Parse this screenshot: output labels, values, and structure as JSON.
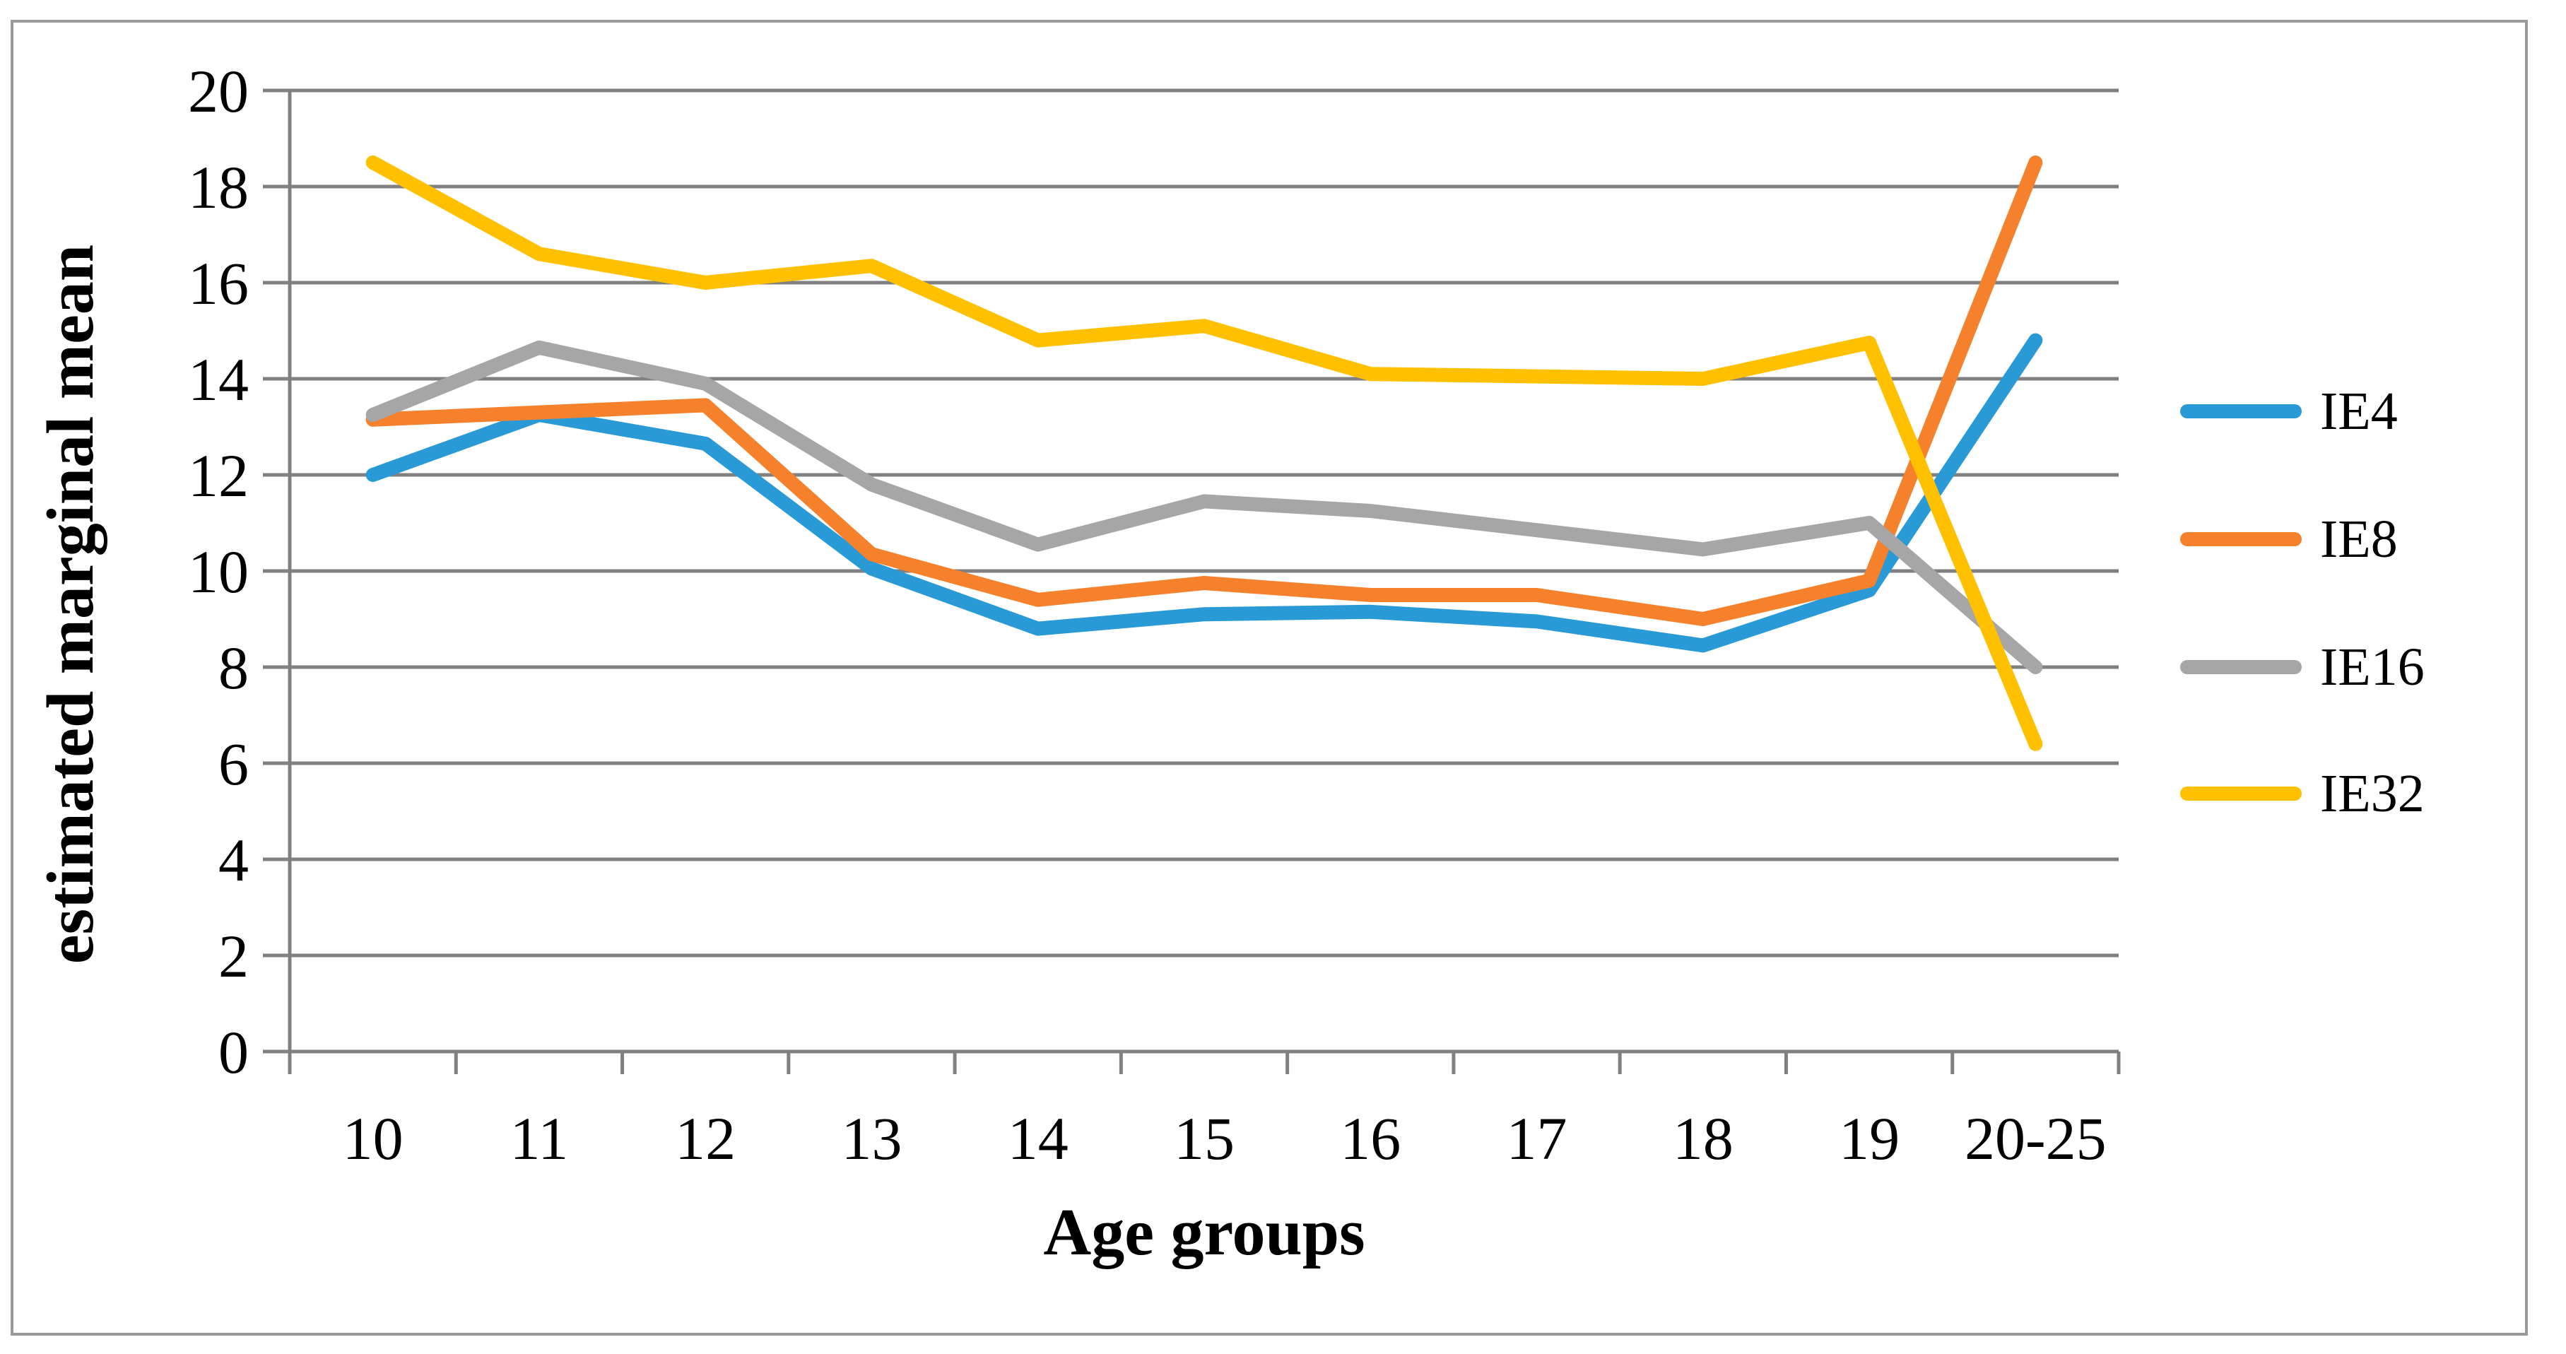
{
  "chart_data": {
    "type": "line",
    "title": "",
    "xlabel": "Age groups",
    "ylabel": "estimated marginal mean",
    "categories": [
      "10",
      "11",
      "12",
      "13",
      "14",
      "15",
      "16",
      "17",
      "18",
      "19",
      "20-25"
    ],
    "y_ticks": [
      "0",
      "2",
      "4",
      "6",
      "8",
      "10",
      "12",
      "14",
      "16",
      "18",
      "20"
    ],
    "ylim": [
      0,
      20
    ],
    "grid": true,
    "legend_position": "right",
    "series": [
      {
        "name": "IE4",
        "color": "#2A9AD6",
        "values": [
          12.0,
          13.25,
          12.65,
          10.05,
          8.8,
          9.1,
          9.15,
          8.95,
          8.45,
          9.6,
          14.8
        ]
      },
      {
        "name": "IE8",
        "color": "#F6812C",
        "values": [
          13.15,
          13.3,
          13.45,
          10.35,
          9.4,
          9.75,
          9.5,
          9.5,
          9.0,
          9.8,
          18.5
        ]
      },
      {
        "name": "IE16",
        "color": "#A6A6A6",
        "values": [
          13.25,
          14.65,
          13.9,
          11.8,
          10.55,
          11.45,
          11.25,
          10.85,
          10.45,
          11.0,
          8.0
        ]
      },
      {
        "name": "IE32",
        "color": "#FFC000",
        "values": [
          18.5,
          16.6,
          16.0,
          16.35,
          14.8,
          15.1,
          14.1,
          14.05,
          14.0,
          14.75,
          6.4
        ]
      }
    ]
  },
  "colors": {
    "gridline": "#808080",
    "axis": "#808080",
    "frame": "#9A9A9A",
    "text": "#000000",
    "background": "#FFFFFF"
  }
}
